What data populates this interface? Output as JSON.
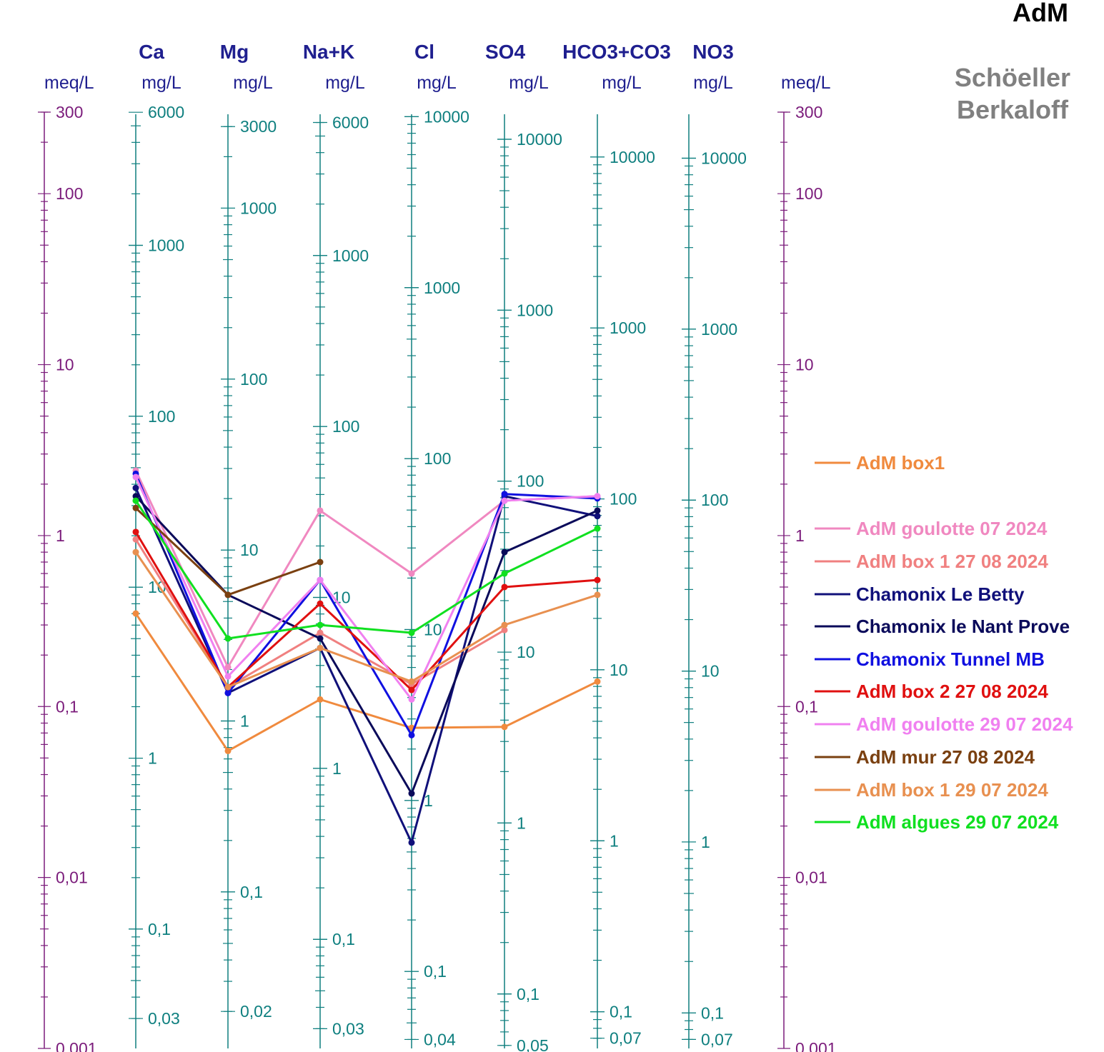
{
  "chart_data": {
    "type": "line",
    "title": "AdM",
    "subtitle_lines": [
      "Schöeller",
      "Berkaloff"
    ],
    "categories": [
      "Ca",
      "Mg",
      "Na+K",
      "Cl",
      "SO4",
      "HCO3+CO3",
      "NO3"
    ],
    "units": {
      "meq": "meq/L",
      "mg": [
        "mg/L",
        "mg/L",
        "mg/L",
        "mg/L",
        "mg/L",
        "mg/L",
        "mg/L"
      ]
    },
    "y_scale": "log",
    "ylim_meq": [
      0.001,
      300
    ],
    "meq_ticks": [
      "300",
      "100",
      "10",
      "1",
      "0,1",
      "0,01",
      "0,001"
    ],
    "mg_ticks": [
      [
        "6000",
        "1000",
        "100",
        "10",
        "1",
        "0,1",
        "0,03"
      ],
      [
        "3000",
        "1000",
        "100",
        "10",
        "1",
        "0,1",
        "0,02"
      ],
      [
        "6000",
        "1000",
        "100",
        "10",
        "1",
        "0,1",
        "0,03"
      ],
      [
        "10000",
        "1000",
        "100",
        "10",
        "1",
        "0,1",
        "0,04"
      ],
      [
        "10000",
        "1000",
        "100",
        "10",
        "1",
        "0,1",
        "0,05"
      ],
      [
        "10000",
        "1000",
        "100",
        "10",
        "1",
        "0,1",
        "0,07"
      ],
      [
        "10000",
        "1000",
        "100",
        "10",
        "1",
        "0,1",
        "0,07"
      ]
    ],
    "series": [
      {
        "name": "AdM box1",
        "color": "#f08a3e",
        "values": [
          0.35,
          0.055,
          0.11,
          0.075,
          0.076,
          0.14,
          null
        ]
      },
      {
        "name": "AdM goulotte 07 2024",
        "color": "#f088c0",
        "values": [
          2.4,
          0.17,
          1.4,
          0.6,
          1.6,
          1.7,
          null
        ]
      },
      {
        "name": "AdM box 1 27 08 2024",
        "color": "#f08080",
        "values": [
          0.95,
          0.13,
          0.27,
          0.135,
          0.28,
          null,
          null
        ]
      },
      {
        "name": "Chamonix Le Betty",
        "color": "#10107a",
        "values": [
          1.9,
          0.12,
          0.22,
          0.016,
          1.7,
          1.3,
          null
        ]
      },
      {
        "name": "Chamonix le Nant Prove",
        "color": "#0a0a5a",
        "values": [
          1.7,
          0.45,
          0.25,
          0.031,
          0.8,
          1.4,
          null
        ]
      },
      {
        "name": "Chamonix Tunnel MB",
        "color": "#1010e0",
        "values": [
          2.3,
          0.12,
          0.55,
          0.068,
          1.75,
          1.65,
          null
        ]
      },
      {
        "name": "AdM box 2 27 08 2024",
        "color": "#e01010",
        "values": [
          1.05,
          0.13,
          0.4,
          0.125,
          0.5,
          0.55,
          null
        ]
      },
      {
        "name": "AdM goulotte 29 07 2024",
        "color": "#f080f0",
        "values": [
          2.2,
          0.15,
          0.55,
          0.11,
          1.6,
          1.7,
          null
        ]
      },
      {
        "name": "AdM mur 27 08 2024",
        "color": "#7a4010",
        "values": [
          1.45,
          0.45,
          0.7,
          null,
          null,
          null,
          null
        ]
      },
      {
        "name": "AdM box 1 29 07 2024",
        "color": "#e89050",
        "values": [
          0.8,
          0.13,
          0.22,
          0.14,
          0.3,
          0.45,
          null
        ]
      },
      {
        "name": "AdM algues 29 07 2024",
        "color": "#10e020",
        "values": [
          1.6,
          0.25,
          0.3,
          0.27,
          0.6,
          1.1,
          null
        ]
      }
    ]
  }
}
